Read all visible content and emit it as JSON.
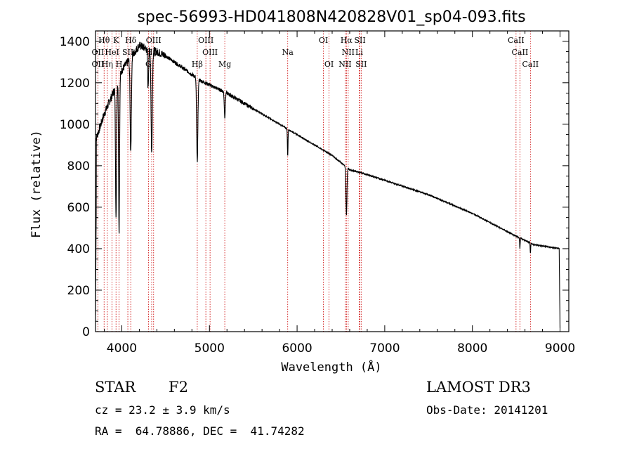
{
  "chart_data": {
    "type": "line",
    "title": "spec-56993-HD041808N420828V01_sp04-093.fits",
    "xlabel": "Wavelength (Å)",
    "ylabel": "Flux (relative)",
    "xlim": [
      3700,
      9100
    ],
    "ylim": [
      0,
      1450
    ],
    "xticks": [
      4000,
      5000,
      6000,
      7000,
      8000,
      9000
    ],
    "yticks": [
      0,
      200,
      400,
      600,
      800,
      1000,
      1200,
      1400
    ],
    "grid": false,
    "series": [
      {
        "name": "spectrum",
        "continuum": [
          [
            3700,
            920
          ],
          [
            3800,
            1050
          ],
          [
            3900,
            1150
          ],
          [
            4000,
            1260
          ],
          [
            4100,
            1320
          ],
          [
            4200,
            1380
          ],
          [
            4300,
            1360
          ],
          [
            4400,
            1350
          ],
          [
            4500,
            1330
          ],
          [
            4600,
            1300
          ],
          [
            4700,
            1270
          ],
          [
            4800,
            1240
          ],
          [
            4900,
            1210
          ],
          [
            5000,
            1190
          ],
          [
            5200,
            1150
          ],
          [
            5400,
            1100
          ],
          [
            5600,
            1050
          ],
          [
            5800,
            1000
          ],
          [
            6000,
            950
          ],
          [
            6200,
            900
          ],
          [
            6400,
            850
          ],
          [
            6600,
            780
          ],
          [
            6700,
            770
          ],
          [
            7000,
            730
          ],
          [
            7500,
            660
          ],
          [
            8000,
            570
          ],
          [
            8500,
            460
          ],
          [
            8700,
            420
          ],
          [
            8990,
            400
          ],
          [
            9000,
            20
          ]
        ],
        "absorption": [
          {
            "line": "K",
            "x": 3934,
            "depth": 650,
            "width": 8
          },
          {
            "line": "H",
            "x": 3969,
            "depth": 750,
            "width": 8
          },
          {
            "line": "Hδ",
            "x": 4102,
            "depth": 450,
            "width": 10
          },
          {
            "line": "G",
            "x": 4300,
            "depth": 180,
            "width": 8
          },
          {
            "line": "Hγ",
            "x": 4341,
            "depth": 500,
            "width": 10
          },
          {
            "line": "Hβ",
            "x": 4861,
            "depth": 400,
            "width": 10
          },
          {
            "line": "Mg",
            "x": 5175,
            "depth": 120,
            "width": 8
          },
          {
            "line": "Na",
            "x": 5893,
            "depth": 130,
            "width": 5
          },
          {
            "line": "Hα",
            "x": 6563,
            "depth": 230,
            "width": 8
          },
          {
            "line": "CaII",
            "x": 8542,
            "depth": 50,
            "width": 4
          },
          {
            "line": "CaII",
            "x": 8662,
            "depth": 50,
            "width": 4
          }
        ]
      }
    ],
    "annotations": [
      {
        "text": "Hθ",
        "x": 3798,
        "row": 1
      },
      {
        "text": "OII",
        "x": 3727,
        "row": 2
      },
      {
        "text": "OII",
        "x": 3727,
        "row": 3
      },
      {
        "text": "K",
        "x": 3934,
        "row": 1
      },
      {
        "text": "HeI",
        "x": 3889,
        "row": 2
      },
      {
        "text": "Hη",
        "x": 3835,
        "row": 3
      },
      {
        "text": "H",
        "x": 3969,
        "row": 3
      },
      {
        "text": "Hδ",
        "x": 4102,
        "row": 1
      },
      {
        "text": "SII",
        "x": 4069,
        "row": 2
      },
      {
        "text": "OIII",
        "x": 4363,
        "row": 1
      },
      {
        "text": "Hγ",
        "x": 4341,
        "row": 2
      },
      {
        "text": "G",
        "x": 4304,
        "row": 3
      },
      {
        "text": "OIII",
        "x": 4959,
        "row": 1
      },
      {
        "text": "OIII",
        "x": 5007,
        "row": 2
      },
      {
        "text": "Hβ",
        "x": 4861,
        "row": 3
      },
      {
        "text": "Mg",
        "x": 5175,
        "row": 3
      },
      {
        "text": "Na",
        "x": 5893,
        "row": 2
      },
      {
        "text": "OI",
        "x": 6300,
        "row": 1
      },
      {
        "text": "OI",
        "x": 6364,
        "row": 3
      },
      {
        "text": "Hα",
        "x": 6563,
        "row": 1
      },
      {
        "text": "SII",
        "x": 6717,
        "row": 1
      },
      {
        "text": "NII",
        "x": 6583,
        "row": 2
      },
      {
        "text": "Li",
        "x": 6708,
        "row": 2
      },
      {
        "text": "NII",
        "x": 6548,
        "row": 3
      },
      {
        "text": "SII",
        "x": 6731,
        "row": 3
      },
      {
        "text": "CaII",
        "x": 8498,
        "row": 1
      },
      {
        "text": "CaII",
        "x": 8542,
        "row": 2
      },
      {
        "text": "CaII",
        "x": 8662,
        "row": 3
      }
    ],
    "marker_lines": [
      3727,
      3798,
      3835,
      3889,
      3934,
      3969,
      4069,
      4102,
      4304,
      4341,
      4363,
      4861,
      4959,
      5007,
      5175,
      5893,
      6300,
      6364,
      6548,
      6563,
      6583,
      6708,
      6717,
      6731,
      8498,
      8542,
      8662
    ]
  },
  "info": {
    "object_type": "STAR",
    "subclass": "F2",
    "survey": "LAMOST DR3",
    "cz": "cz = 23.2 ± 3.9 km/s",
    "obs_date": "Obs-Date: 20141201",
    "coords": "RA =  64.78886, DEC =  41.74282"
  },
  "colors": {
    "line": "#000000",
    "marker": "#cc0000",
    "background": "#ffffff"
  }
}
